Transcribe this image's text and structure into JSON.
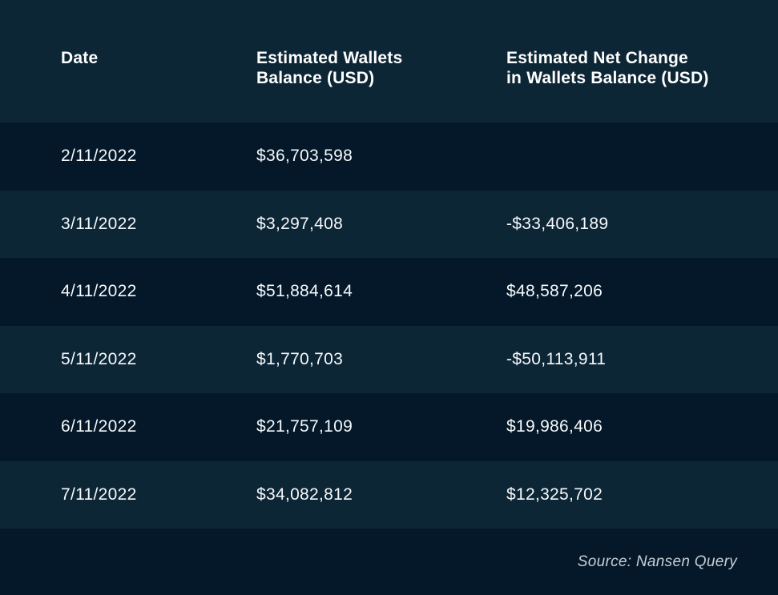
{
  "header": {
    "col1_line1": "Date",
    "col1_line2": "",
    "col2_line1": "Estimated Wallets",
    "col2_line2": "Balance (USD)",
    "col3_line1": "Estimated Net Change",
    "col3_line2": "in Wallets Balance (USD)"
  },
  "rows": [
    {
      "date": "2/11/2022",
      "balance": "$36,703,598",
      "net_change": ""
    },
    {
      "date": "3/11/2022",
      "balance": "$3,297,408",
      "net_change": "-$33,406,189"
    },
    {
      "date": "4/11/2022",
      "balance": "$51,884,614",
      "net_change": "$48,587,206"
    },
    {
      "date": "5/11/2022",
      "balance": "$1,770,703",
      "net_change": "-$50,113,911"
    },
    {
      "date": "6/11/2022",
      "balance": "$21,757,109",
      "net_change": "$19,986,406"
    },
    {
      "date": "7/11/2022",
      "balance": "$34,082,812",
      "net_change": "$12,325,702"
    }
  ],
  "footer": {
    "source": "Source: Nansen Query"
  },
  "colors": {
    "header_bg": "#0D2636",
    "row_dark_bg": "#041829",
    "row_light_bg": "#0D2636",
    "footer_bg": "#041829",
    "header_text": "#FFFFFF",
    "cell_text": "#F5F8FA",
    "source_text": "#C8CED5"
  },
  "chart_data": {
    "type": "table",
    "title": "",
    "columns": [
      "Date",
      "Estimated Wallets Balance (USD)",
      "Estimated Net Change in Wallets Balance (USD)"
    ],
    "rows": [
      [
        "2/11/2022",
        36703598,
        null
      ],
      [
        "3/11/2022",
        3297408,
        -33406189
      ],
      [
        "4/11/2022",
        51884614,
        48587206
      ],
      [
        "5/11/2022",
        1770703,
        -50113911
      ],
      [
        "6/11/2022",
        21757109,
        19986406
      ],
      [
        "7/11/2022",
        34082812,
        12325702
      ]
    ],
    "annotations": [
      "Source: Nansen Query"
    ]
  }
}
